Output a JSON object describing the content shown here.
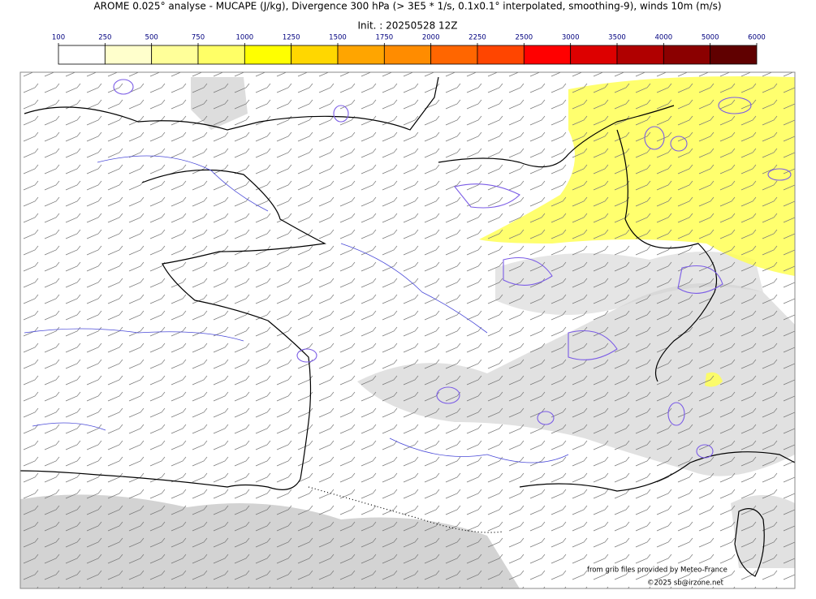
{
  "header": {
    "title": "AROME 0.025° analyse - MUCAPE (J/kg), Divergence 300 hPa (> 3E5 * 1/s, 0.1x0.1° interpolated, smoothing-9), winds 10m (m/s)",
    "init": "Init. : 20250528 12Z"
  },
  "colorbar": {
    "ticks": [
      100,
      250,
      500,
      750,
      1000,
      1250,
      1500,
      1750,
      2000,
      2250,
      2500,
      3000,
      3500,
      4000,
      5000,
      6000
    ],
    "colors": [
      "#ffffff",
      "#ffffcc",
      "#ffff99",
      "#ffff66",
      "#ffff00",
      "#ffd700",
      "#ffa500",
      "#ff8c00",
      "#ff6600",
      "#ff4500",
      "#ff0000",
      "#dd0000",
      "#b00000",
      "#8b0000",
      "#600000"
    ]
  },
  "credits": {
    "source": "from grib files provided by Meteo-France",
    "copyright": "©2025 sb@irzone.net"
  }
}
